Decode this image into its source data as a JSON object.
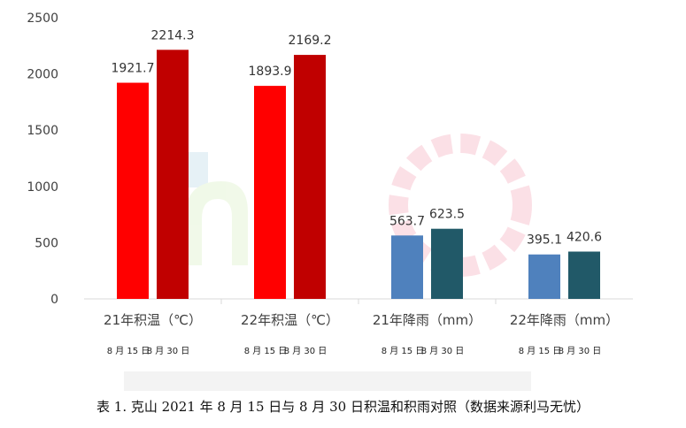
{
  "caption": "表 1. 克山 2021 年 8 月 15 日与 8 月 30 日积温和积雨对照（数据来源利马无忧）",
  "chart_data": {
    "type": "bar",
    "ylim": [
      0,
      2500
    ],
    "yticks": [
      0,
      500,
      1000,
      1500,
      2000,
      2500
    ],
    "grid": false,
    "legend": "none",
    "groups": [
      {
        "label": "21年积温（℃）",
        "bars": [
          {
            "label": "8 月 15 日",
            "value": 1921.7,
            "value_label": "1921.7",
            "color": "#FF0000"
          },
          {
            "label": "8 月 30 日",
            "value": 2214.3,
            "value_label": "2214.3",
            "color": "#C00000"
          }
        ]
      },
      {
        "label": "22年积温（℃）",
        "bars": [
          {
            "label": "8 月 15 日",
            "value": 1893.9,
            "value_label": "1893.9",
            "color": "#FF0000"
          },
          {
            "label": "8 月 30 日",
            "value": 2169.2,
            "value_label": "2169.2",
            "color": "#C00000"
          }
        ]
      },
      {
        "label": "21年降雨（mm）",
        "bars": [
          {
            "label": "8 月 15 日",
            "value": 563.7,
            "value_label": "563.7",
            "color": "#4F81BD"
          },
          {
            "label": "8 月 30 日",
            "value": 623.5,
            "value_label": "623.5",
            "color": "#215968"
          }
        ]
      },
      {
        "label": "22年降雨（mm）",
        "bars": [
          {
            "label": "8 月 15 日",
            "value": 395.1,
            "value_label": "395.1",
            "color": "#4F81BD"
          },
          {
            "label": "8 月 30 日",
            "value": 420.6,
            "value_label": "420.6",
            "color": "#215968"
          }
        ]
      }
    ]
  }
}
